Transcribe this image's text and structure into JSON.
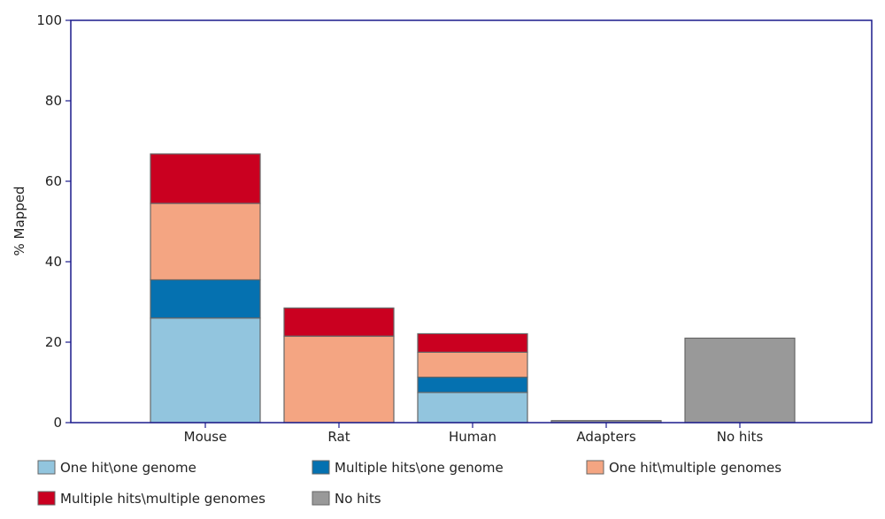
{
  "chart_data": {
    "type": "bar",
    "stacked": true,
    "title": "",
    "xlabel": "",
    "ylabel": "% Mapped",
    "ylim": [
      0,
      100
    ],
    "yticks": [
      0,
      20,
      40,
      60,
      80,
      100
    ],
    "grid": false,
    "legend_position": "bottom",
    "categories": [
      "Mouse",
      "Rat",
      "Human",
      "Adapters",
      "No hits"
    ],
    "series": [
      {
        "name": "One hit\\one genome",
        "color": "#92c5de",
        "values": [
          26,
          0,
          7.5,
          0,
          0
        ]
      },
      {
        "name": "Multiple hits\\one genome",
        "color": "#0571b0",
        "values": [
          9.5,
          0,
          3.8,
          0,
          0
        ]
      },
      {
        "name": "One hit\\multiple genomes",
        "color": "#f4a582",
        "values": [
          19,
          21.5,
          6.2,
          0,
          0
        ]
      },
      {
        "name": "Multiple hits\\multiple genomes",
        "color": "#ca0020",
        "values": [
          12.3,
          7,
          4.6,
          0,
          0
        ]
      },
      {
        "name": "No hits",
        "color": "#999999",
        "values": [
          0,
          0,
          0,
          0.5,
          21
        ]
      }
    ],
    "axis_color": "#1a1a8c"
  }
}
